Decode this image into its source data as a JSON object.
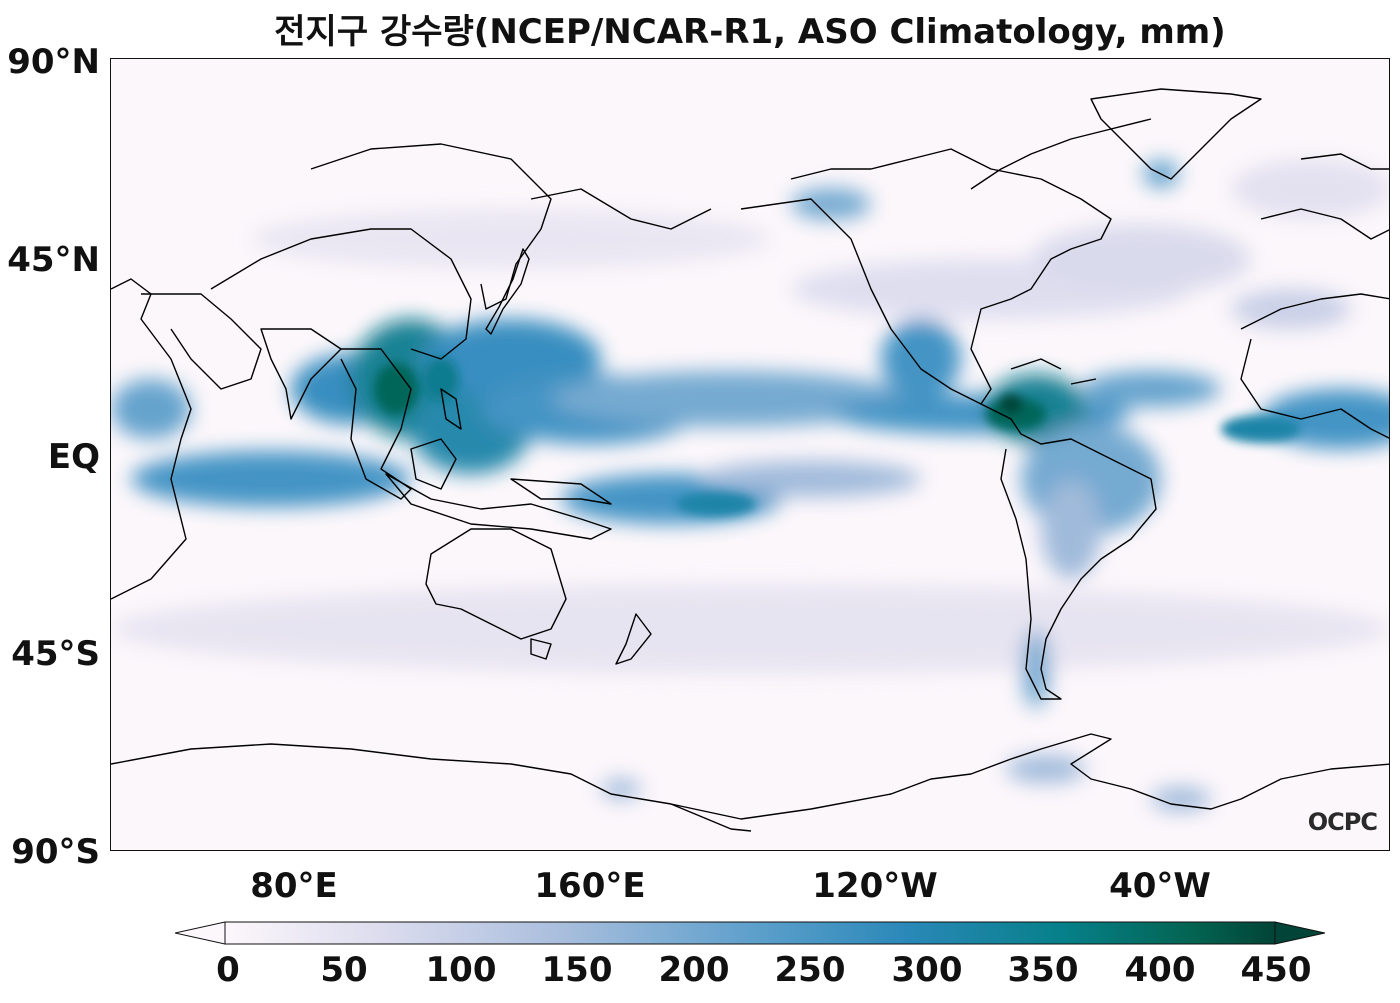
{
  "title": "전지구 강수량(NCEP/NCAR-R1, ASO Climatology, mm)",
  "map": {
    "projection": "equirectangular, central longitude 160°E",
    "lat_labels": [
      "90°N",
      "45°N",
      "EQ",
      "45°S",
      "90°S"
    ],
    "lon_labels": [
      "80°E",
      "160°E",
      "120°W",
      "40°W"
    ],
    "watermark": "OCPC",
    "colormap": [
      "#fcf7fb",
      "#d8d9ec",
      "#9bb7d9",
      "#3b8fc2",
      "#0b7c8f",
      "#03665a",
      "#024437"
    ],
    "coastline_color": "#000000"
  },
  "colorbar": {
    "ticks": [
      "0",
      "50",
      "100",
      "150",
      "200",
      "250",
      "300",
      "350",
      "400",
      "450"
    ],
    "min": 0,
    "max": 450,
    "extend": "both"
  }
}
